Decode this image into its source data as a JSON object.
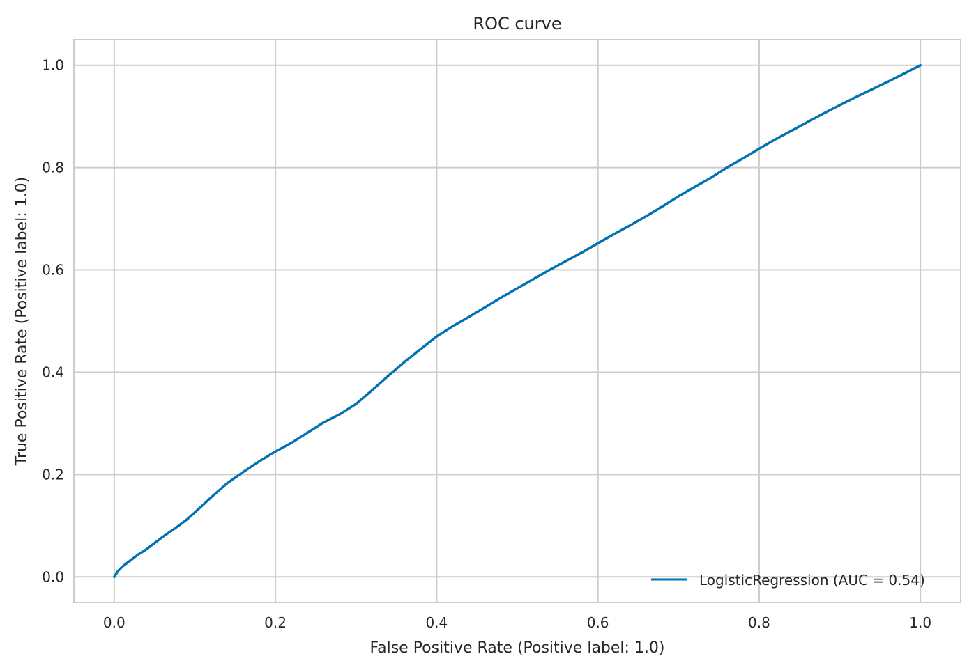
{
  "chart_data": {
    "type": "line",
    "title": "ROC curve",
    "xlabel": "False Positive Rate (Positive label: 1.0)",
    "ylabel": "True Positive Rate (Positive label: 1.0)",
    "xlim": [
      -0.05,
      1.05
    ],
    "ylim": [
      -0.05,
      1.05
    ],
    "xticks": [
      0.0,
      0.2,
      0.4,
      0.6,
      0.8,
      1.0
    ],
    "yticks": [
      0.0,
      0.2,
      0.4,
      0.6,
      0.8,
      1.0
    ],
    "xtick_labels": [
      "0.0",
      "0.2",
      "0.4",
      "0.6",
      "0.8",
      "1.0"
    ],
    "ytick_labels": [
      "0.0",
      "0.2",
      "0.4",
      "0.6",
      "0.8",
      "1.0"
    ],
    "grid": true,
    "legend_position": "lower-right",
    "series": [
      {
        "name": "LogisticRegression (AUC = 0.54)",
        "color": "#0072b2",
        "x": [
          0.0,
          0.005,
          0.01,
          0.02,
          0.03,
          0.04,
          0.05,
          0.06,
          0.07,
          0.08,
          0.09,
          0.1,
          0.12,
          0.14,
          0.16,
          0.18,
          0.2,
          0.22,
          0.24,
          0.26,
          0.28,
          0.3,
          0.32,
          0.34,
          0.36,
          0.38,
          0.4,
          0.42,
          0.44,
          0.46,
          0.48,
          0.5,
          0.52,
          0.54,
          0.56,
          0.58,
          0.6,
          0.62,
          0.64,
          0.66,
          0.68,
          0.7,
          0.72,
          0.74,
          0.76,
          0.78,
          0.8,
          0.82,
          0.84,
          0.86,
          0.88,
          0.9,
          0.92,
          0.94,
          0.96,
          0.98,
          1.0
        ],
        "y": [
          0.0,
          0.012,
          0.02,
          0.032,
          0.044,
          0.054,
          0.066,
          0.078,
          0.089,
          0.1,
          0.112,
          0.126,
          0.155,
          0.183,
          0.205,
          0.226,
          0.245,
          0.262,
          0.282,
          0.302,
          0.318,
          0.338,
          0.365,
          0.393,
          0.42,
          0.445,
          0.47,
          0.49,
          0.508,
          0.527,
          0.546,
          0.564,
          0.582,
          0.6,
          0.617,
          0.634,
          0.652,
          0.67,
          0.687,
          0.705,
          0.724,
          0.744,
          0.762,
          0.78,
          0.8,
          0.818,
          0.837,
          0.855,
          0.872,
          0.889,
          0.906,
          0.922,
          0.938,
          0.953,
          0.968,
          0.984,
          1.0
        ]
      }
    ]
  }
}
